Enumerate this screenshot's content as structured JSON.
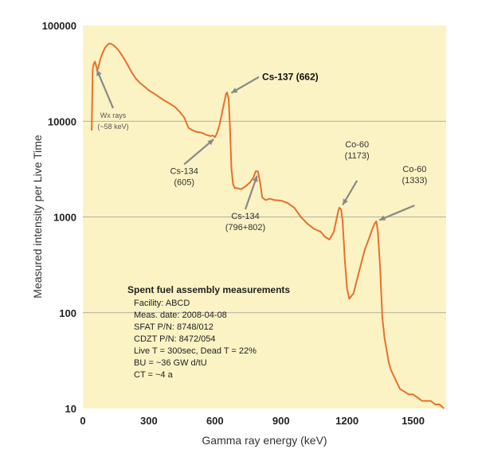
{
  "chart_data": {
    "type": "line",
    "title": "",
    "xlabel": "Gamma ray energy (keV)",
    "ylabel": "Measured intensity per Live Time",
    "xlim": [
      0,
      1650
    ],
    "ylim": [
      10,
      100000
    ],
    "yscale": "log",
    "x_ticks": [
      0,
      300,
      600,
      900,
      1200,
      1500
    ],
    "x_tick_labels": [
      "0",
      "300",
      "600",
      "900",
      "1200",
      "1500"
    ],
    "y_ticks": [
      10,
      100,
      1000,
      10000,
      100000
    ],
    "y_tick_labels": [
      "10",
      "100",
      "1000",
      "10000",
      "100000"
    ],
    "grid": "horizontal",
    "colors": {
      "background": "#fbf3c4",
      "line": "#e8702a",
      "grid": "#999999",
      "arrow": "#888888"
    },
    "series": [
      {
        "x": [
          40,
          45,
          50,
          55,
          60,
          65,
          70,
          80,
          90,
          100,
          110,
          120,
          130,
          140,
          160,
          180,
          200,
          220,
          240,
          260,
          280,
          300,
          330,
          360,
          390,
          420,
          440,
          460,
          480,
          500,
          520,
          540,
          560,
          580,
          590,
          600,
          610,
          620,
          630,
          640,
          650,
          655,
          662,
          668,
          675,
          682,
          690,
          700,
          720,
          740,
          760,
          775,
          785,
          795,
          805,
          815,
          830,
          850,
          870,
          900,
          930,
          960,
          990,
          1020,
          1050,
          1080,
          1100,
          1120,
          1140,
          1150,
          1160,
          1165,
          1173,
          1180,
          1190,
          1200,
          1210,
          1220,
          1230,
          1240,
          1260,
          1280,
          1300,
          1315,
          1325,
          1333,
          1340,
          1350,
          1360,
          1370,
          1380,
          1390,
          1400,
          1420,
          1440,
          1460,
          1480,
          1500,
          1520,
          1540,
          1560,
          1580,
          1600,
          1620,
          1640
        ],
        "y": [
          8000,
          35000,
          40000,
          42000,
          38000,
          34000,
          36000,
          45000,
          52000,
          58000,
          62000,
          65000,
          64000,
          62000,
          56000,
          48000,
          40000,
          33000,
          28000,
          25000,
          23000,
          21000,
          19000,
          17000,
          15500,
          14000,
          12500,
          11000,
          8500,
          8000,
          7700,
          7600,
          7200,
          7000,
          7100,
          6800,
          7600,
          9000,
          11500,
          15000,
          19000,
          20000,
          17000,
          9000,
          3200,
          2200,
          2000,
          2000,
          1950,
          2100,
          2300,
          2600,
          3000,
          3000,
          2300,
          1600,
          1500,
          1550,
          1500,
          1480,
          1400,
          1250,
          1000,
          850,
          750,
          700,
          620,
          580,
          700,
          900,
          1150,
          1250,
          1200,
          900,
          350,
          180,
          140,
          150,
          160,
          200,
          300,
          450,
          600,
          750,
          850,
          900,
          700,
          300,
          90,
          55,
          40,
          30,
          25,
          20,
          16,
          15,
          14,
          14,
          13,
          12,
          12,
          12,
          11,
          11,
          10
        ]
      }
    ],
    "annotations": [
      {
        "lines": [
          "Wx rays",
          "(~58 keV)"
        ],
        "x": 58,
        "y": 37000
      },
      {
        "lines": [
          "Cs-137 (662)"
        ],
        "x": 662,
        "y": 19000
      },
      {
        "lines": [
          "Cs-134",
          "(605)"
        ],
        "x": 605,
        "y": 6800
      },
      {
        "lines": [
          "Cs-134",
          "(796+802)"
        ],
        "x": 796,
        "y": 2900
      },
      {
        "lines": [
          "Co-60",
          "(1173)"
        ],
        "x": 1173,
        "y": 1250
      },
      {
        "lines": [
          "Co-60",
          "(1333)"
        ],
        "x": 1333,
        "y": 900
      }
    ],
    "info_box": {
      "title": "Spent fuel assembly measurements",
      "lines": [
        "Facility: ABCD",
        "Meas. date: 2008-04-08",
        "SFAT P/N: 8748/012",
        "CDZT P/N: 8472/054",
        "Live T = 300sec, Dead T = 22%",
        "BU = ~36 GW d/tU",
        "CT = ~4 a"
      ]
    }
  }
}
